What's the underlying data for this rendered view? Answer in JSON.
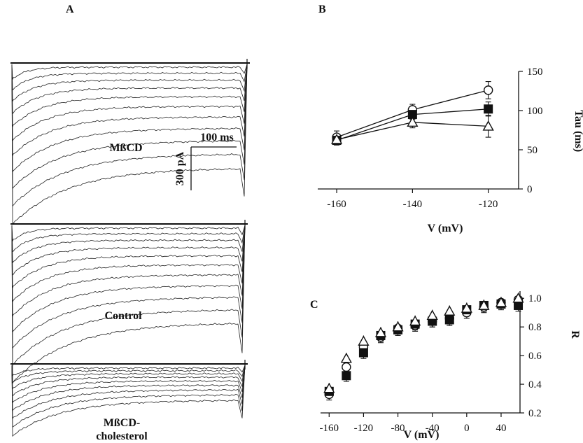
{
  "panels": {
    "A": "A",
    "B": "B",
    "C": "C"
  },
  "traces": {
    "top_label": "MßCD",
    "mid_label": "Control",
    "bot_label_line1": "MßCD-",
    "bot_label_line2": "cholesterol",
    "scale_time": "100 ms",
    "scale_current": "300 pA"
  },
  "chart_data": [
    {
      "panel": "B",
      "type": "line",
      "xlabel": "V (mV)",
      "ylabel": "Tau (ms)",
      "xlim": [
        -165,
        -112
      ],
      "ylim": [
        0,
        150
      ],
      "xticks": [
        -160,
        -140,
        -120
      ],
      "yticks": [
        0,
        50,
        100,
        150
      ],
      "yaxis_side": "right",
      "x": [
        -160,
        -140,
        -120
      ],
      "series": [
        {
          "marker": "open-circle",
          "values": [
            66,
            101,
            126
          ],
          "errors": [
            8,
            7,
            11
          ]
        },
        {
          "marker": "filled-square",
          "values": [
            62,
            95,
            102
          ],
          "errors": [
            6,
            6,
            9
          ]
        },
        {
          "marker": "open-triangle",
          "values": [
            63,
            85,
            80
          ],
          "errors": [
            5,
            7,
            14
          ]
        }
      ]
    },
    {
      "panel": "C",
      "type": "scatter",
      "xlabel": "V (mV)",
      "ylabel": "R",
      "xlim": [
        -170,
        62
      ],
      "ylim": [
        0.2,
        1.05
      ],
      "xticks": [
        -160,
        -120,
        -80,
        -40,
        0,
        40
      ],
      "yticks": [
        0.2,
        0.4,
        0.6,
        0.8,
        1.0
      ],
      "ytick_labels": [
        "0.2",
        "0.4",
        "0.6",
        "0.8",
        "1.0"
      ],
      "yaxis_side": "right",
      "x": [
        -160,
        -140,
        -120,
        -100,
        -80,
        -60,
        -40,
        -20,
        0,
        20,
        40,
        60
      ],
      "series": [
        {
          "marker": "open-circle",
          "values": [
            0.33,
            0.52,
            0.66,
            0.73,
            0.79,
            0.81,
            0.84,
            0.86,
            0.9,
            0.94,
            0.97,
            0.99
          ]
        },
        {
          "marker": "filled-square",
          "values": [
            0.35,
            0.46,
            0.62,
            0.74,
            0.78,
            0.82,
            0.84,
            0.85,
            0.92,
            0.95,
            0.96,
            0.95
          ]
        },
        {
          "marker": "open-triangle",
          "values": [
            0.37,
            0.58,
            0.7,
            0.76,
            0.8,
            0.84,
            0.88,
            0.91,
            0.93,
            0.95,
            0.97,
            1.0
          ]
        }
      ]
    }
  ]
}
